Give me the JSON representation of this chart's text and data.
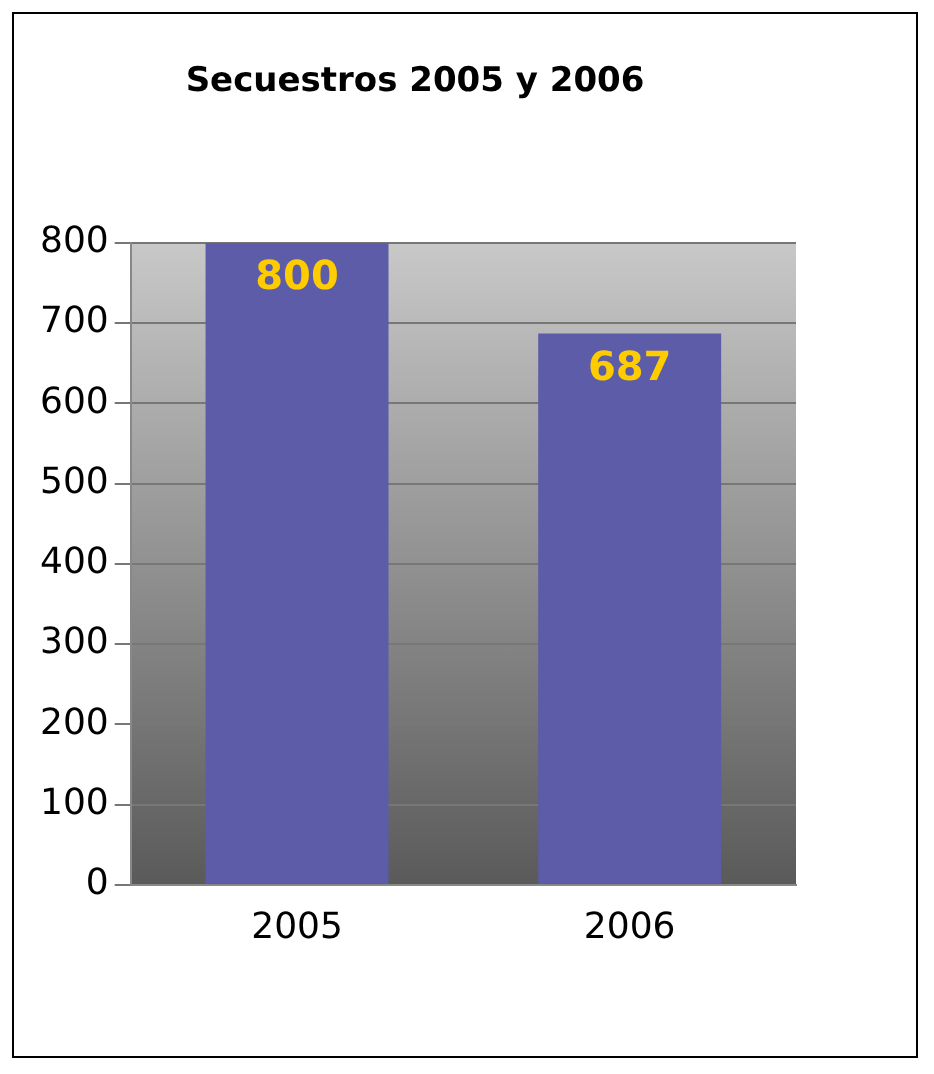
{
  "chart_data": {
    "type": "bar",
    "title": "Secuestros 2005 y 2006",
    "categories": [
      "2005",
      "2006"
    ],
    "values": [
      800,
      687
    ],
    "color": "#5c5ca8",
    "ylim": [
      0,
      800
    ],
    "yticks": [
      0,
      100,
      200,
      300,
      400,
      500,
      600,
      700,
      800
    ],
    "grid": "y",
    "data_labels": true,
    "legend": false
  }
}
